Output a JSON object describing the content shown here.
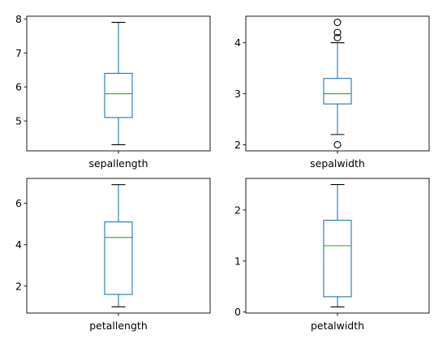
{
  "chart_data": [
    {
      "type": "box",
      "xlabel": "sepallength",
      "ylim": [
        4.12,
        8.08
      ],
      "yticks": [
        5,
        6,
        7,
        8
      ],
      "stats": {
        "whislo": 4.3,
        "q1": 5.1,
        "med": 5.8,
        "q3": 6.4,
        "whishi": 7.9,
        "fliers": []
      }
    },
    {
      "type": "box",
      "xlabel": "sepalwidth",
      "ylim": [
        1.88,
        4.52
      ],
      "yticks": [
        2,
        3,
        4
      ],
      "stats": {
        "whislo": 2.2,
        "q1": 2.8,
        "med": 3.0,
        "q3": 3.3,
        "whishi": 4.0,
        "fliers": [
          4.4,
          4.1,
          4.2,
          2.0
        ]
      }
    },
    {
      "type": "box",
      "xlabel": "petallength",
      "ylim": [
        0.7,
        7.2
      ],
      "yticks": [
        2,
        4,
        6
      ],
      "stats": {
        "whislo": 1.0,
        "q1": 1.6,
        "med": 4.35,
        "q3": 5.1,
        "whishi": 6.9,
        "fliers": []
      }
    },
    {
      "type": "box",
      "xlabel": "petalwidth",
      "ylim": [
        -0.02,
        2.62
      ],
      "yticks": [
        0,
        1,
        2
      ],
      "stats": {
        "whislo": 0.1,
        "q1": 0.3,
        "med": 1.3,
        "q3": 1.8,
        "whishi": 2.5,
        "fliers": []
      }
    }
  ]
}
